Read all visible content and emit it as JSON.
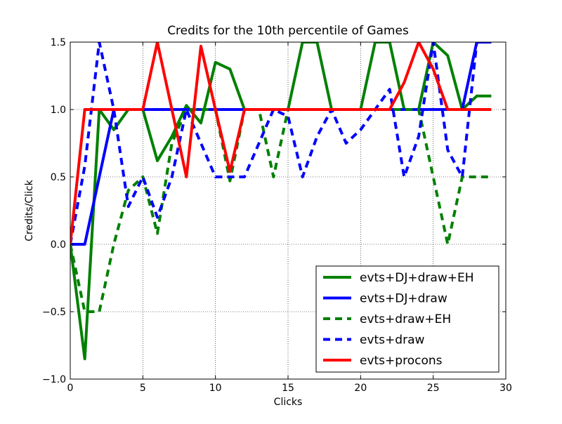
{
  "chart_data": {
    "type": "line",
    "title": "Credits for the 10th percentile of Games",
    "xlabel": "Clicks",
    "ylabel": "Credits/Click",
    "xlim": [
      0,
      30
    ],
    "ylim": [
      -1.0,
      1.5
    ],
    "xticks": [
      0,
      5,
      10,
      15,
      20,
      25,
      30
    ],
    "yticks": [
      -1.0,
      -0.5,
      0.0,
      0.5,
      1.0,
      1.5
    ],
    "xtick_labels": [
      "0",
      "5",
      "10",
      "15",
      "20",
      "25",
      "30"
    ],
    "ytick_labels": [
      "−1.0",
      "−0.5",
      "0.0",
      "0.5",
      "1.0",
      "1.5"
    ],
    "grid": true,
    "legend_position": "lower-right",
    "x": [
      0,
      1,
      2,
      3,
      4,
      5,
      6,
      7,
      8,
      9,
      10,
      11,
      12,
      13,
      14,
      15,
      16,
      17,
      18,
      19,
      20,
      21,
      22,
      23,
      24,
      25,
      26,
      27,
      28,
      29
    ],
    "series": [
      {
        "name": "evts+DJ+draw+EH",
        "color": "#008000",
        "style": "solid",
        "values": [
          0.0,
          -0.85,
          1.0,
          0.85,
          1.0,
          1.0,
          0.62,
          0.8,
          1.03,
          0.9,
          1.35,
          1.3,
          1.0,
          1.0,
          1.0,
          1.0,
          1.5,
          1.5,
          1.0,
          1.0,
          1.0,
          1.5,
          1.5,
          1.0,
          1.0,
          1.5,
          1.4,
          1.0,
          1.1,
          1.1
        ]
      },
      {
        "name": "evts+DJ+draw",
        "color": "#0000ff",
        "style": "solid",
        "values": [
          0.0,
          0.0,
          0.5,
          1.0,
          1.0,
          1.0,
          1.0,
          1.0,
          1.0,
          1.0,
          1.0,
          1.0,
          1.0,
          1.0,
          1.0,
          1.0,
          1.0,
          1.0,
          1.0,
          1.0,
          1.0,
          1.0,
          1.0,
          1.0,
          1.0,
          1.0,
          1.0,
          1.0,
          1.5,
          1.5
        ]
      },
      {
        "name": "evts+draw+EH",
        "color": "#008000",
        "style": "dashed",
        "values": [
          0.0,
          -0.5,
          -0.5,
          0.0,
          0.4,
          0.5,
          0.08,
          0.75,
          1.0,
          1.0,
          1.0,
          0.47,
          1.0,
          1.0,
          0.5,
          1.0,
          1.0,
          1.0,
          1.0,
          1.0,
          1.0,
          1.0,
          1.0,
          1.0,
          1.0,
          0.5,
          0.0,
          0.5,
          0.5,
          0.5
        ]
      },
      {
        "name": "evts+draw",
        "color": "#0000ff",
        "style": "dashed",
        "values": [
          0.0,
          0.58,
          1.5,
          1.0,
          0.28,
          0.5,
          0.2,
          0.5,
          1.0,
          0.75,
          0.5,
          0.5,
          0.5,
          0.75,
          1.0,
          0.95,
          0.5,
          0.8,
          1.0,
          0.75,
          0.85,
          1.0,
          1.15,
          0.5,
          0.8,
          1.5,
          0.7,
          0.5,
          1.5,
          1.5
        ]
      },
      {
        "name": "evts+procons",
        "color": "#ff0000",
        "style": "solid",
        "values": [
          0.0,
          1.0,
          1.0,
          1.0,
          1.0,
          1.0,
          1.5,
          1.0,
          0.5,
          1.47,
          1.0,
          0.54,
          1.0,
          1.0,
          1.0,
          1.0,
          1.0,
          1.0,
          1.0,
          1.0,
          1.0,
          1.0,
          1.0,
          1.2,
          1.5,
          1.3,
          1.0,
          1.0,
          1.0,
          1.0
        ]
      }
    ]
  }
}
